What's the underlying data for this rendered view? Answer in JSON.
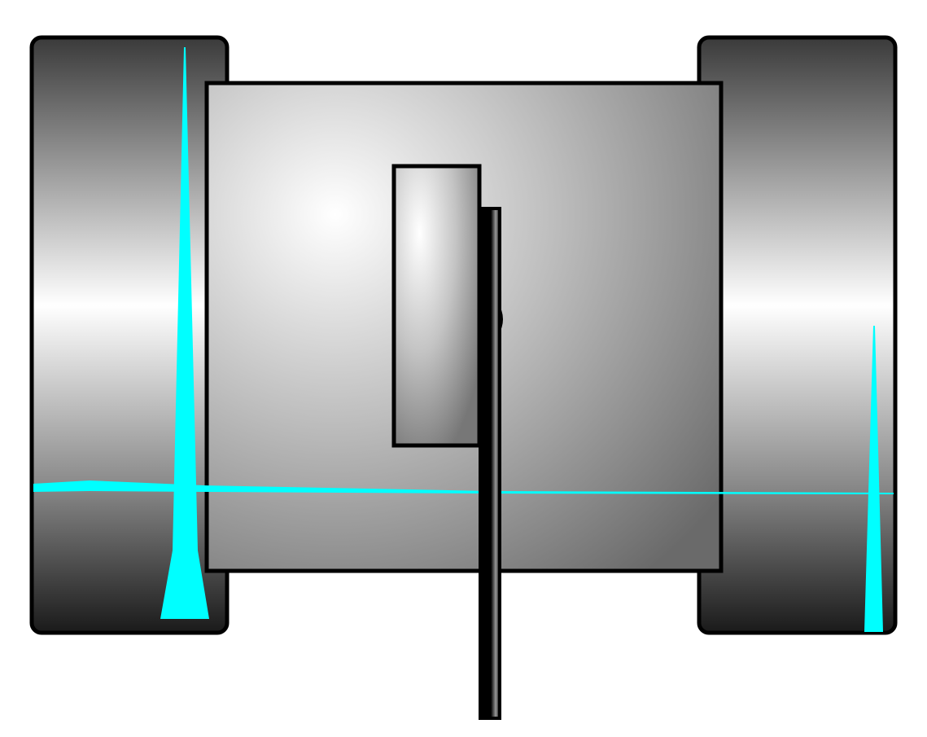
{
  "diagram": {
    "colors": {
      "outline": "#000000",
      "accent": "#00ffff",
      "background": "#ffffff",
      "metal_light": "#ffffff",
      "metal_mid": "#b8b8b8",
      "metal_dark": "#1e1e1e"
    },
    "parts": [
      "left-roller",
      "right-roller",
      "center-housing",
      "inner-window",
      "vertical-rod",
      "cyan-spike-left",
      "cyan-spike-right",
      "cyan-horizontal-line"
    ]
  }
}
